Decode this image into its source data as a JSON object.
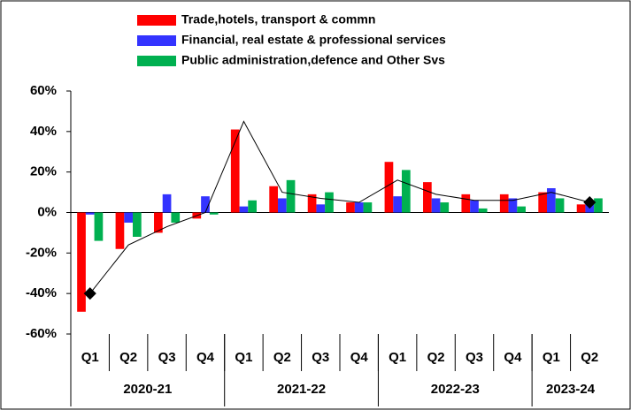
{
  "chart_data": {
    "type": "bar",
    "categories": [
      "Q1",
      "Q2",
      "Q3",
      "Q4",
      "Q1",
      "Q2",
      "Q3",
      "Q4",
      "Q1",
      "Q2",
      "Q3",
      "Q4",
      "Q1",
      "Q2"
    ],
    "groups": [
      {
        "label": "2020-21",
        "count": 4
      },
      {
        "label": "2021-22",
        "count": 4
      },
      {
        "label": "2022-23",
        "count": 4
      },
      {
        "label": "2023-24",
        "count": 2
      }
    ],
    "series": [
      {
        "name": "Trade,hotels, transport & commn",
        "color": "#ff0000",
        "values": [
          -49,
          -18,
          -10,
          -3,
          41,
          13,
          9,
          5,
          25,
          15,
          9,
          9,
          10,
          4
        ]
      },
      {
        "name": "Financial, real estate & professional services",
        "color": "#3333ff",
        "values": [
          -1,
          -5,
          9,
          8,
          3,
          7,
          4,
          5,
          8,
          7,
          6,
          7,
          12,
          6
        ]
      },
      {
        "name": "Public administration,defence and Other Svs",
        "color": "#00b050",
        "values": [
          -14,
          -12,
          -5,
          -1,
          6,
          16,
          10,
          5,
          21,
          5,
          2,
          3,
          7,
          7
        ]
      },
      {
        "type": "line",
        "color": "#000000",
        "values": [
          -40,
          -16,
          -7,
          0,
          45,
          10,
          7,
          5,
          16,
          9,
          6,
          6,
          10,
          5
        ]
      }
    ],
    "ylim": [
      -60,
      60
    ],
    "yticks": [
      {
        "value": -60,
        "label": "-60%"
      },
      {
        "value": -40,
        "label": "-40%"
      },
      {
        "value": -20,
        "label": "-20%"
      },
      {
        "value": 0,
        "label": "0%"
      },
      {
        "value": 20,
        "label": "20%"
      },
      {
        "value": 40,
        "label": "40%"
      },
      {
        "value": 60,
        "label": "60%"
      }
    ],
    "grid": false,
    "legend": "top"
  }
}
